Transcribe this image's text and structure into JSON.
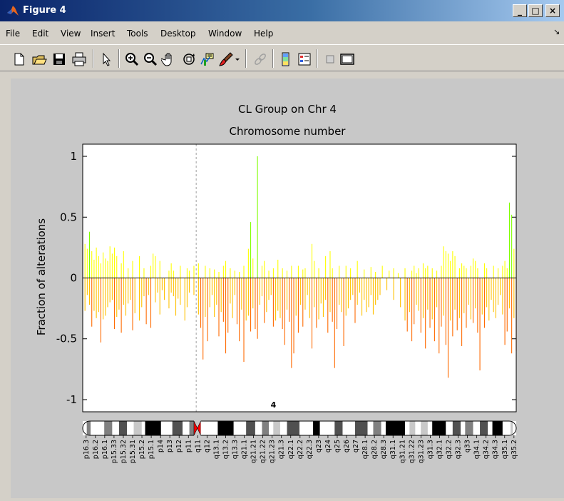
{
  "window": {
    "title": "Figure 4"
  },
  "titlebar_buttons": {
    "minimize": "_",
    "maximize": "□",
    "close": "×"
  },
  "menu": [
    "File",
    "Edit",
    "View",
    "Insert",
    "Tools",
    "Desktop",
    "Window",
    "Help"
  ],
  "toolbar_icons": [
    "new-file-icon",
    "open-file-icon",
    "save-icon",
    "print-icon",
    "select-arrow-icon",
    "zoom-in-icon",
    "zoom-out-icon",
    "pan-hand-icon",
    "rotate-3d-icon",
    "data-cursor-icon",
    "brush-icon",
    "dropdown-arrow-icon",
    "link-plot-icon",
    "colorbar-icon",
    "legend-icon",
    "hide-plot-tools-icon",
    "show-plot-tools-icon"
  ],
  "chart_data": {
    "type": "bar",
    "title": "CL Group on Chr 4",
    "subtitle": "Chromosome number",
    "ylabel": "Fraction of alterations",
    "ylim": [
      -1.1,
      1.1
    ],
    "yticks": [
      -1,
      -0.5,
      0,
      0.5,
      1
    ],
    "ytick_labels": [
      "-1",
      "-0.5",
      "0",
      "0.5",
      "1"
    ],
    "xlim": [
      0,
      191
    ],
    "centromere_x": 50,
    "chromosome_label": "4",
    "colors": {
      "positive_high": "#80ff00",
      "positive_mid": "#ffff00",
      "negative_mid": "#ffc000",
      "negative_high": "#ff6a00",
      "centromere_line": "#a0a0a0",
      "centromere_band": "#ff0000"
    },
    "gains": [
      [
        1,
        0.28
      ],
      [
        2,
        0.24
      ],
      [
        3,
        0.38
      ],
      [
        4,
        0.22
      ],
      [
        5,
        0.15
      ],
      [
        6,
        0.25
      ],
      [
        7,
        0.18
      ],
      [
        8,
        0.12
      ],
      [
        9,
        0.21
      ],
      [
        10,
        0.16
      ],
      [
        11,
        0.14
      ],
      [
        12,
        0.26
      ],
      [
        13,
        0.2
      ],
      [
        14,
        0.25
      ],
      [
        15,
        0.18
      ],
      [
        17,
        0.12
      ],
      [
        18,
        0.22
      ],
      [
        20,
        0.08
      ],
      [
        22,
        0.14
      ],
      [
        25,
        0.18
      ],
      [
        27,
        0.08
      ],
      [
        30,
        0.1
      ],
      [
        31,
        0.2
      ],
      [
        32,
        0.18
      ],
      [
        34,
        0.14
      ],
      [
        38,
        0.06
      ],
      [
        39,
        0.12
      ],
      [
        40,
        0.06
      ],
      [
        43,
        0.1
      ],
      [
        46,
        0.08
      ],
      [
        47,
        0.06
      ],
      [
        49,
        0.1
      ],
      [
        51,
        0.12
      ],
      [
        54,
        0.1
      ],
      [
        56,
        0.08
      ],
      [
        58,
        0.07
      ],
      [
        60,
        0.05
      ],
      [
        62,
        0.1
      ],
      [
        63,
        0.14
      ],
      [
        65,
        0.08
      ],
      [
        67,
        0.06
      ],
      [
        69,
        0.05
      ],
      [
        71,
        0.1
      ],
      [
        73,
        0.24
      ],
      [
        74,
        0.46
      ],
      [
        75,
        0.16
      ],
      [
        77,
        1.0
      ],
      [
        79,
        0.1
      ],
      [
        80,
        0.14
      ],
      [
        82,
        0.06
      ],
      [
        84,
        0.08
      ],
      [
        86,
        0.15
      ],
      [
        88,
        0.08
      ],
      [
        90,
        0.06
      ],
      [
        92,
        0.1
      ],
      [
        95,
        0.1
      ],
      [
        97,
        0.07
      ],
      [
        98,
        0.08
      ],
      [
        101,
        0.28
      ],
      [
        102,
        0.14
      ],
      [
        104,
        0.08
      ],
      [
        107,
        0.18
      ],
      [
        109,
        0.22
      ],
      [
        110,
        0.08
      ],
      [
        113,
        0.1
      ],
      [
        116,
        0.1
      ],
      [
        118,
        0.08
      ],
      [
        121,
        0.14
      ],
      [
        124,
        0.07
      ],
      [
        127,
        0.09
      ],
      [
        129,
        0.05
      ],
      [
        132,
        0.1
      ],
      [
        135,
        0.06
      ],
      [
        137,
        0.08
      ],
      [
        139,
        0.04
      ],
      [
        142,
        0.08
      ],
      [
        145,
        0.06
      ],
      [
        146,
        0.1
      ],
      [
        147,
        0.04
      ],
      [
        148,
        0.08
      ],
      [
        150,
        0.12
      ],
      [
        151,
        0.08
      ],
      [
        152,
        0.1
      ],
      [
        154,
        0.08
      ],
      [
        156,
        0.06
      ],
      [
        158,
        0.1
      ],
      [
        159,
        0.26
      ],
      [
        160,
        0.22
      ],
      [
        161,
        0.2
      ],
      [
        162,
        0.14
      ],
      [
        163,
        0.22
      ],
      [
        164,
        0.18
      ],
      [
        166,
        0.08
      ],
      [
        167,
        0.12
      ],
      [
        168,
        0.1
      ],
      [
        169,
        0.08
      ],
      [
        171,
        0.1
      ],
      [
        172,
        0.16
      ],
      [
        173,
        0.14
      ],
      [
        174,
        0.08
      ],
      [
        177,
        0.12
      ],
      [
        178,
        0.08
      ],
      [
        181,
        0.1
      ],
      [
        183,
        0.08
      ],
      [
        185,
        0.1
      ],
      [
        186,
        0.14
      ],
      [
        187,
        0.08
      ],
      [
        188,
        0.62
      ],
      [
        189,
        0.52
      ],
      [
        190,
        0.24
      ],
      [
        191,
        0.16
      ]
    ],
    "losses": [
      [
        1,
        -0.27
      ],
      [
        2,
        -0.14
      ],
      [
        3,
        -0.22
      ],
      [
        4,
        -0.4
      ],
      [
        5,
        -0.27
      ],
      [
        6,
        -0.33
      ],
      [
        7,
        -0.28
      ],
      [
        8,
        -0.53
      ],
      [
        9,
        -0.34
      ],
      [
        10,
        -0.31
      ],
      [
        11,
        -0.24
      ],
      [
        12,
        -0.2
      ],
      [
        13,
        -0.18
      ],
      [
        14,
        -0.42
      ],
      [
        15,
        -0.32
      ],
      [
        16,
        -0.26
      ],
      [
        17,
        -0.45
      ],
      [
        18,
        -0.22
      ],
      [
        19,
        -0.31
      ],
      [
        20,
        -0.21
      ],
      [
        21,
        -0.18
      ],
      [
        22,
        -0.43
      ],
      [
        23,
        -0.29
      ],
      [
        25,
        -0.35
      ],
      [
        26,
        -0.24
      ],
      [
        27,
        -0.15
      ],
      [
        28,
        -0.38
      ],
      [
        29,
        -0.14
      ],
      [
        30,
        -0.41
      ],
      [
        32,
        -0.2
      ],
      [
        33,
        -0.12
      ],
      [
        34,
        -0.3
      ],
      [
        35,
        -0.1
      ],
      [
        36,
        -0.18
      ],
      [
        38,
        -0.25
      ],
      [
        39,
        -0.12
      ],
      [
        40,
        -0.15
      ],
      [
        41,
        -0.31
      ],
      [
        42,
        -0.17
      ],
      [
        43,
        -0.22
      ],
      [
        45,
        -0.35
      ],
      [
        46,
        -0.24
      ],
      [
        47,
        -0.12
      ],
      [
        49,
        -0.14
      ],
      [
        51,
        -0.3
      ],
      [
        52,
        -0.41
      ],
      [
        53,
        -0.67
      ],
      [
        54,
        -0.32
      ],
      [
        55,
        -0.52
      ],
      [
        56,
        -0.24
      ],
      [
        57,
        -0.14
      ],
      [
        58,
        -0.32
      ],
      [
        59,
        -0.22
      ],
      [
        60,
        -0.48
      ],
      [
        61,
        -0.28
      ],
      [
        62,
        -0.36
      ],
      [
        63,
        -0.62
      ],
      [
        64,
        -0.45
      ],
      [
        65,
        -0.21
      ],
      [
        66,
        -0.33
      ],
      [
        67,
        -0.14
      ],
      [
        68,
        -0.38
      ],
      [
        69,
        -0.52
      ],
      [
        70,
        -0.26
      ],
      [
        71,
        -0.69
      ],
      [
        72,
        -0.35
      ],
      [
        73,
        -0.31
      ],
      [
        74,
        -0.44
      ],
      [
        75,
        -0.25
      ],
      [
        76,
        -0.42
      ],
      [
        77,
        -0.5
      ],
      [
        78,
        -0.22
      ],
      [
        79,
        -0.15
      ],
      [
        80,
        -0.37
      ],
      [
        81,
        -0.28
      ],
      [
        82,
        -0.18
      ],
      [
        83,
        -0.14
      ],
      [
        84,
        -0.4
      ],
      [
        85,
        -0.35
      ],
      [
        86,
        -0.27
      ],
      [
        87,
        -0.33
      ],
      [
        88,
        -0.42
      ],
      [
        89,
        -0.55
      ],
      [
        90,
        -0.26
      ],
      [
        91,
        -0.36
      ],
      [
        92,
        -0.74
      ],
      [
        93,
        -0.62
      ],
      [
        94,
        -0.31
      ],
      [
        95,
        -0.45
      ],
      [
        96,
        -0.22
      ],
      [
        97,
        -0.4
      ],
      [
        98,
        -0.26
      ],
      [
        99,
        -0.14
      ],
      [
        100,
        -0.33
      ],
      [
        101,
        -0.58
      ],
      [
        102,
        -0.24
      ],
      [
        103,
        -0.41
      ],
      [
        104,
        -0.34
      ],
      [
        105,
        -0.21
      ],
      [
        106,
        -0.32
      ],
      [
        107,
        -0.18
      ],
      [
        108,
        -0.45
      ],
      [
        109,
        -0.28
      ],
      [
        110,
        -0.36
      ],
      [
        111,
        -0.74
      ],
      [
        112,
        -0.42
      ],
      [
        113,
        -0.22
      ],
      [
        114,
        -0.28
      ],
      [
        115,
        -0.56
      ],
      [
        116,
        -0.31
      ],
      [
        117,
        -0.25
      ],
      [
        118,
        -0.18
      ],
      [
        119,
        -0.14
      ],
      [
        120,
        -0.37
      ],
      [
        121,
        -0.22
      ],
      [
        122,
        -0.12
      ],
      [
        123,
        -0.31
      ],
      [
        124,
        -0.18
      ],
      [
        125,
        -0.28
      ],
      [
        126,
        -0.24
      ],
      [
        127,
        -0.14
      ],
      [
        128,
        -0.3
      ],
      [
        129,
        -0.22
      ],
      [
        130,
        -0.18
      ],
      [
        131,
        -0.14
      ],
      [
        134,
        -0.1
      ],
      [
        137,
        -0.18
      ],
      [
        140,
        -0.24
      ],
      [
        142,
        -0.35
      ],
      [
        143,
        -0.44
      ],
      [
        144,
        -0.28
      ],
      [
        145,
        -0.52
      ],
      [
        146,
        -0.38
      ],
      [
        147,
        -0.22
      ],
      [
        148,
        -0.27
      ],
      [
        149,
        -0.45
      ],
      [
        150,
        -0.33
      ],
      [
        151,
        -0.58
      ],
      [
        152,
        -0.26
      ],
      [
        153,
        -0.41
      ],
      [
        154,
        -0.34
      ],
      [
        155,
        -0.52
      ],
      [
        156,
        -0.24
      ],
      [
        157,
        -0.62
      ],
      [
        158,
        -0.4
      ],
      [
        159,
        -0.31
      ],
      [
        160,
        -0.55
      ],
      [
        161,
        -0.82
      ],
      [
        162,
        -0.35
      ],
      [
        163,
        -0.48
      ],
      [
        164,
        -0.26
      ],
      [
        165,
        -0.43
      ],
      [
        166,
        -0.33
      ],
      [
        167,
        -0.56
      ],
      [
        168,
        -0.29
      ],
      [
        169,
        -0.41
      ],
      [
        170,
        -0.22
      ],
      [
        171,
        -0.34
      ],
      [
        172,
        -0.37
      ],
      [
        173,
        -0.25
      ],
      [
        174,
        -0.45
      ],
      [
        175,
        -0.76
      ],
      [
        176,
        -0.3
      ],
      [
        177,
        -0.41
      ],
      [
        178,
        -0.24
      ],
      [
        179,
        -0.35
      ],
      [
        180,
        -0.18
      ],
      [
        181,
        -0.28
      ],
      [
        182,
        -0.33
      ],
      [
        183,
        -0.22
      ],
      [
        184,
        -0.14
      ],
      [
        185,
        -0.3
      ],
      [
        186,
        -0.55
      ],
      [
        187,
        -0.44
      ],
      [
        188,
        -0.25
      ],
      [
        189,
        -0.62
      ],
      [
        190,
        -0.33
      ],
      [
        191,
        -0.6
      ]
    ],
    "band_labels": [
      "p16.3",
      "p16.2",
      "p16.1",
      "p15.33",
      "p15.32",
      "p15.31",
      "p15.2",
      "p15.1",
      "p14",
      "p13",
      "p12",
      "p11",
      "q11",
      "q12",
      "q13.1",
      "q13.2",
      "q13.3",
      "q21.1",
      "q21.21",
      "q21.22",
      "q21.23",
      "q21.3",
      "q22.1",
      "q22.2",
      "q22.3",
      "q23",
      "q24",
      "q25",
      "q26",
      "q27",
      "q28.1",
      "q28.2",
      "q28.3",
      "q31.1",
      "q31.21",
      "q31.22",
      "q31.23",
      "q31.3",
      "q32.1",
      "q32.2",
      "q32.3",
      "q33",
      "q34.1",
      "q34.2",
      "q34.3",
      "q35.1",
      "q35.2"
    ],
    "ideogram_bands": [
      [
        "gneg",
        0.0,
        1.8
      ],
      [
        "gpos50",
        1.8,
        3.5
      ],
      [
        "gneg",
        3.5,
        9.5
      ],
      [
        "gpos50",
        9.5,
        13.0
      ],
      [
        "gneg",
        13.0,
        16.0
      ],
      [
        "gpos75",
        16.0,
        19.5
      ],
      [
        "gneg",
        19.5,
        22.5
      ],
      [
        "gpos25",
        22.5,
        26.0
      ],
      [
        "gneg",
        26.0,
        27.5
      ],
      [
        "gpos100",
        27.5,
        34.5
      ],
      [
        "gneg",
        34.5,
        39.5
      ],
      [
        "gpos75",
        39.5,
        44.0
      ],
      [
        "gneg",
        44.0,
        47.0
      ],
      [
        "gpos50",
        47.0,
        49.0
      ],
      [
        "acen",
        49.0,
        52.0
      ],
      [
        "gneg",
        52.0,
        59.5
      ],
      [
        "gpos100",
        59.5,
        66.5
      ],
      [
        "gneg",
        66.5,
        72.0
      ],
      [
        "gpos75",
        72.0,
        76.0
      ],
      [
        "gneg",
        76.0,
        79.0
      ],
      [
        "gpos50",
        79.0,
        82.0
      ],
      [
        "gneg",
        82.0,
        84.0
      ],
      [
        "gpos25",
        84.0,
        87.0
      ],
      [
        "gneg",
        87.0,
        90.0
      ],
      [
        "gpos75",
        90.0,
        95.5
      ],
      [
        "gneg",
        95.5,
        101.5
      ],
      [
        "gpos100",
        101.5,
        104.5
      ],
      [
        "gneg",
        104.5,
        111.0
      ],
      [
        "gpos75",
        111.0,
        114.5
      ],
      [
        "gneg",
        114.5,
        120.0
      ],
      [
        "gpos75",
        120.0,
        125.5
      ],
      [
        "gneg",
        125.5,
        128.0
      ],
      [
        "gpos50",
        128.0,
        131.5
      ],
      [
        "gneg",
        131.5,
        133.5
      ],
      [
        "gpos100",
        133.5,
        142.0
      ],
      [
        "gneg",
        142.0,
        144.0
      ],
      [
        "gpos25",
        144.0,
        146.5
      ],
      [
        "gneg",
        146.5,
        149.0
      ],
      [
        "gpos25",
        149.0,
        152.0
      ],
      [
        "gneg",
        152.0,
        154.0
      ],
      [
        "gpos100",
        154.0,
        160.0
      ],
      [
        "gneg",
        160.0,
        163.0
      ],
      [
        "gpos75",
        163.0,
        166.5
      ],
      [
        "gneg",
        166.5,
        168.5
      ],
      [
        "gpos50",
        168.5,
        172.0
      ],
      [
        "gneg",
        172.0,
        175.0
      ],
      [
        "gpos75",
        175.0,
        178.5
      ],
      [
        "gneg",
        178.5,
        180.5
      ],
      [
        "gpos100",
        180.5,
        185.0
      ],
      [
        "gneg",
        185.0,
        188.5
      ],
      [
        "gpos25",
        188.5,
        189.5
      ],
      [
        "gneg",
        189.5,
        191.0
      ]
    ]
  }
}
